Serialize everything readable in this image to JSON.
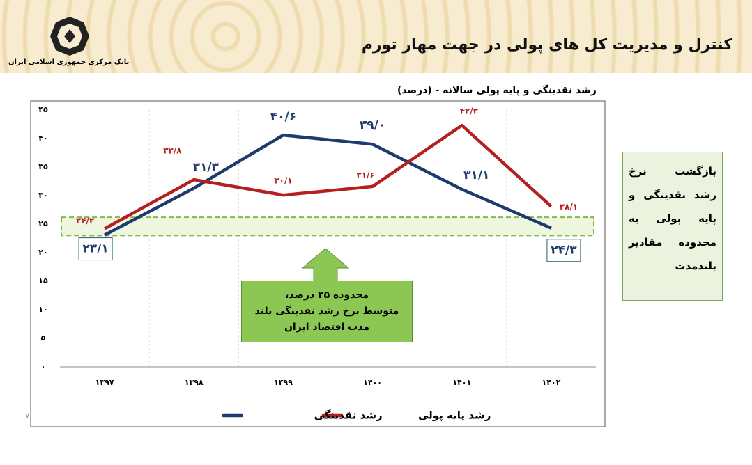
{
  "header": {
    "title": "کنترل و مدیریت کل های پولی در جهت مهار تورم",
    "logo_text": "بانک مرکزی جمهوری اسلامی ایران"
  },
  "chart_data": {
    "type": "line",
    "title": "رشد نقدینگی و پایه پولی سالانه - (درصد)",
    "categories": [
      "۱۳۹۷",
      "۱۳۹۸",
      "۱۳۹۹",
      "۱۴۰۰",
      "۱۴۰۱",
      "۱۴۰۲"
    ],
    "series": [
      {
        "name": "رشد نقدینگی",
        "color": "#1f3a6e",
        "values": [
          23.1,
          31.3,
          40.6,
          39.0,
          31.1,
          24.3
        ],
        "value_labels": [
          "۲۳/۱",
          "۳۱/۳",
          "۴۰/۶",
          "۳۹/۰",
          "۳۱/۱",
          "۲۴/۳"
        ]
      },
      {
        "name": "رشد پایه پولی",
        "color": "#b3201f",
        "values": [
          24.2,
          32.8,
          30.1,
          31.6,
          42.3,
          28.1
        ],
        "value_labels": [
          "۲۴/۲",
          "۳۲/۸",
          "۳۰/۱",
          "۳۱/۶",
          "۴۲/۳",
          "۲۸/۱"
        ]
      }
    ],
    "ylim": [
      0,
      45
    ],
    "yticks": [
      {
        "value": 0,
        "label": "۰"
      },
      {
        "value": 5,
        "label": "۵"
      },
      {
        "value": 10,
        "label": "۱۰"
      },
      {
        "value": 15,
        "label": "۱۵"
      },
      {
        "value": 20,
        "label": "۲۰"
      },
      {
        "value": 25,
        "label": "۲۵"
      },
      {
        "value": 30,
        "label": "۳۰"
      },
      {
        "value": 35,
        "label": "۳۵"
      },
      {
        "value": 40,
        "label": "۴۰"
      },
      {
        "value": 45,
        "label": "۴۵"
      }
    ],
    "band": [
      23,
      26.2
    ],
    "annotation_lines": [
      "محدوده ۲۵ درصد،",
      "متوسط نرخ رشد نقدینگی بلند",
      "مدت اقتصاد ایران"
    ]
  },
  "side_note_lines": [
    "بازگشت نرخ",
    "رشد نقدینگی و",
    "پایه پولی به",
    "محدوده مقادیر",
    "بلندمدت"
  ],
  "page_number": "۷"
}
